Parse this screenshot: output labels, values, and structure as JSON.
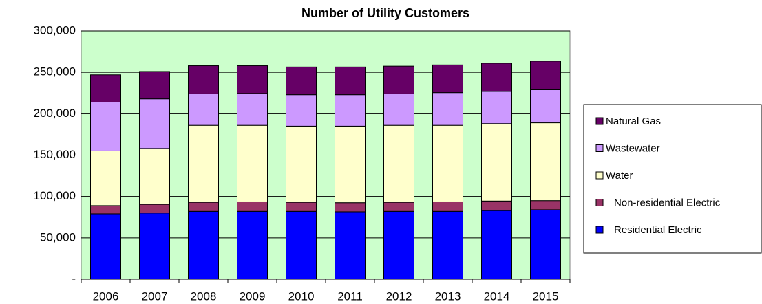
{
  "chart_data": {
    "type": "stacked_bar",
    "title": "Number of Utility Customers",
    "categories": [
      "2006",
      "2007",
      "2008",
      "2009",
      "2010",
      "2011",
      "2012",
      "2013",
      "2014",
      "2015"
    ],
    "series": [
      {
        "name": "Residential Electric",
        "color": "#0000ff",
        "values": [
          79000,
          80000,
          82000,
          82000,
          82000,
          81500,
          82000,
          82000,
          83000,
          84000
        ]
      },
      {
        "name": "Non-residential Electric",
        "color": "#993366",
        "values": [
          10000,
          10500,
          11000,
          11500,
          11000,
          11000,
          11000,
          11500,
          11500,
          11000
        ]
      },
      {
        "name": "Water",
        "color": "#ffffcc",
        "values": [
          66000,
          67500,
          93000,
          92500,
          92000,
          92500,
          93000,
          92500,
          93500,
          94000
        ]
      },
      {
        "name": "Wastewater",
        "color": "#cc99ff",
        "values": [
          59000,
          60000,
          38000,
          38500,
          38000,
          38000,
          38000,
          39500,
          39000,
          40000
        ]
      },
      {
        "name": "Natural Gas",
        "color": "#660066",
        "values": [
          33000,
          33000,
          34000,
          33500,
          33500,
          33500,
          33500,
          33500,
          34000,
          34500
        ]
      }
    ],
    "ylim": [
      0,
      300000
    ],
    "yticks": [
      {
        "value": 0,
        "label": "-"
      },
      {
        "value": 50000,
        "label": "50,000"
      },
      {
        "value": 100000,
        "label": "100,000"
      },
      {
        "value": 150000,
        "label": "150,000"
      },
      {
        "value": 200000,
        "label": "200,000"
      },
      {
        "value": 250000,
        "label": "250,000"
      },
      {
        "value": 300000,
        "label": "300,000"
      }
    ],
    "grid": true,
    "legend": "right",
    "plot_background": "#ccffcc"
  }
}
